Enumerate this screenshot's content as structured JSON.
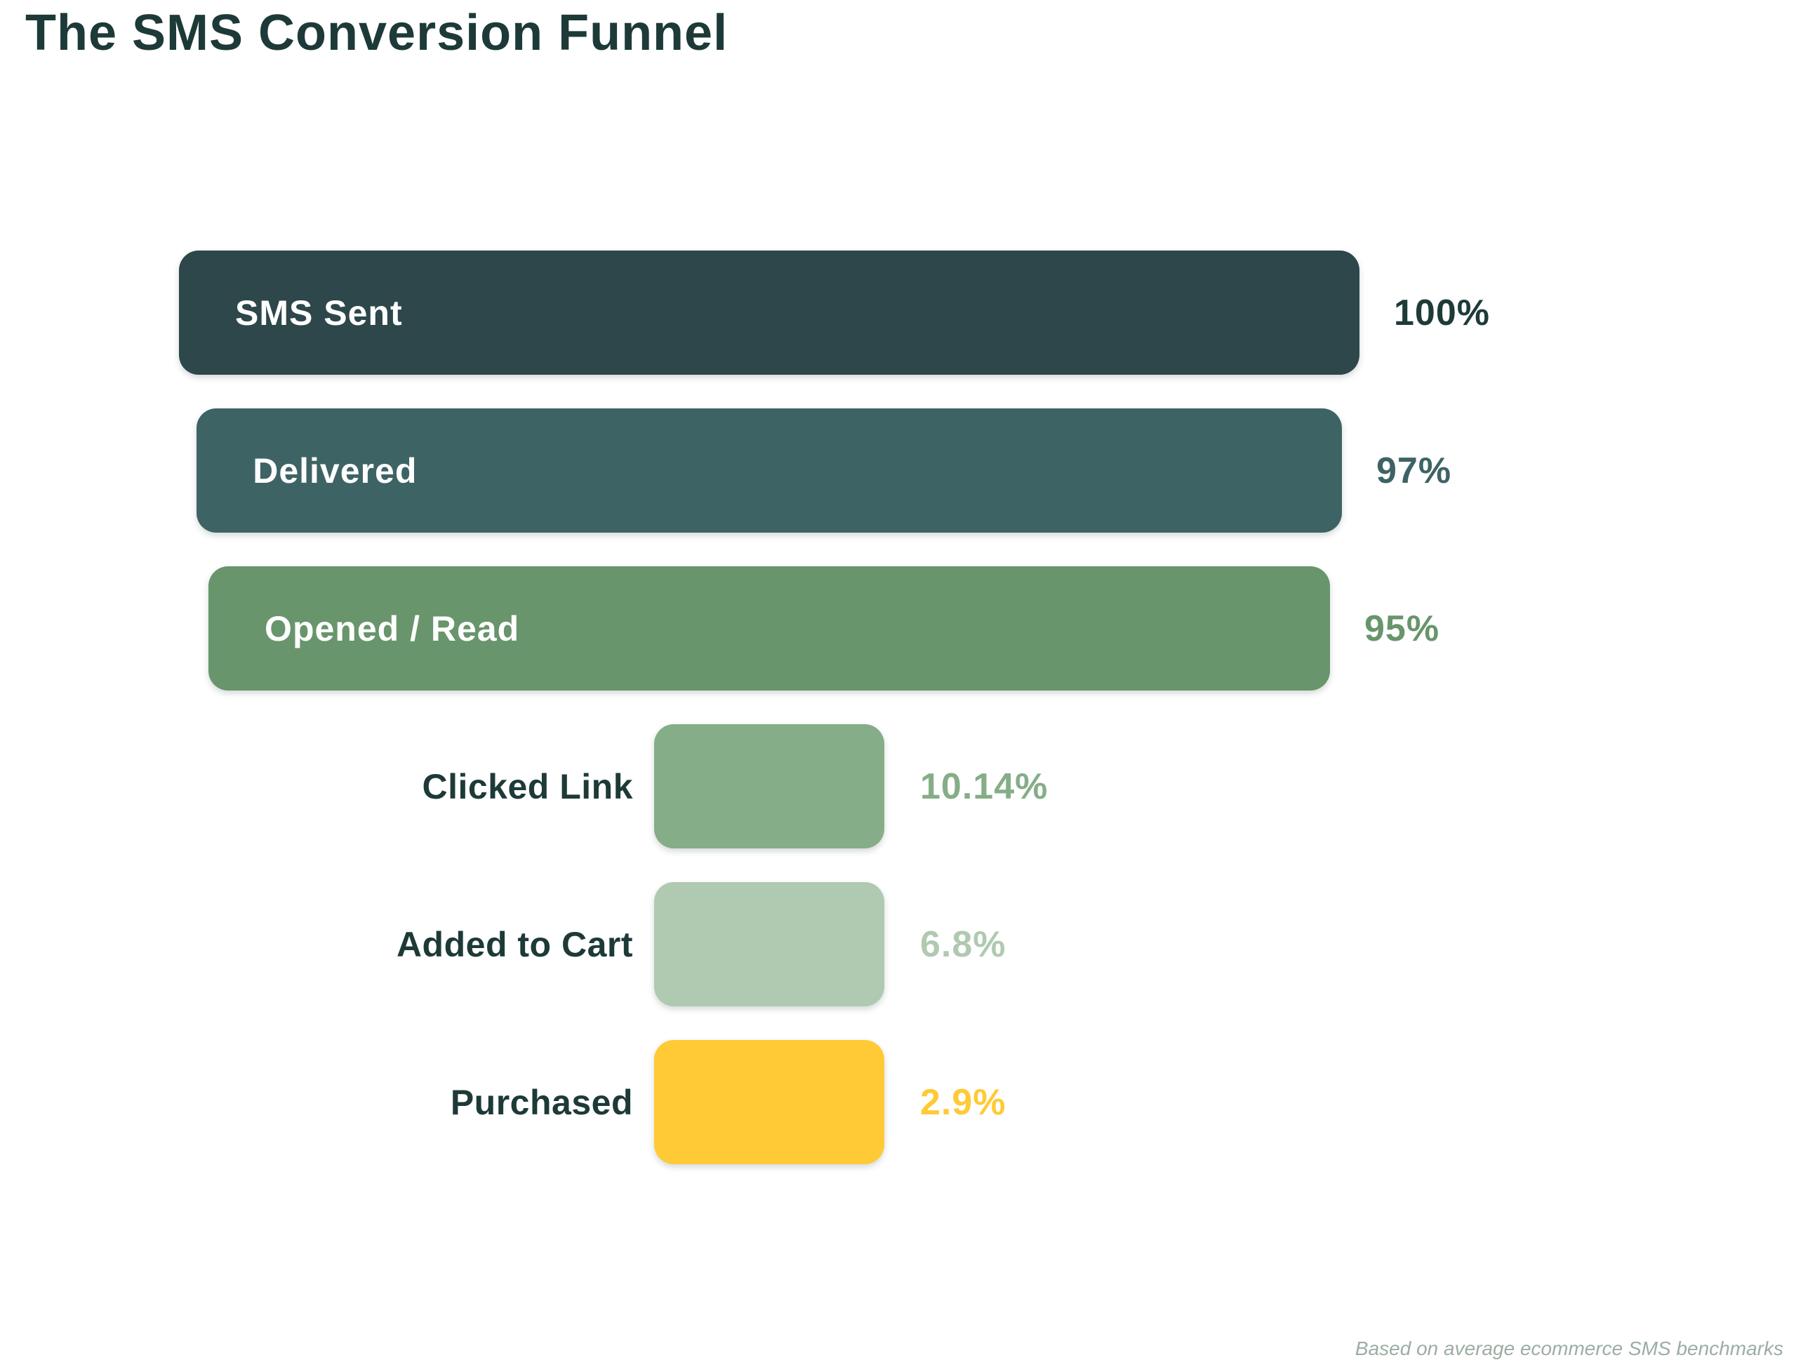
{
  "chart_data": {
    "type": "funnel",
    "title": "The SMS Conversion Funnel",
    "orientation": "horizontal-centered",
    "value_unit": "%",
    "stages": [
      {
        "label": "SMS Sent",
        "value": 100,
        "value_label": "100%",
        "color": "#2d474a",
        "value_color": "#1e3b39",
        "label_position": "inside"
      },
      {
        "label": "Delivered",
        "value": 97,
        "value_label": "97%",
        "color": "#3e6365",
        "value_color": "#3e6365",
        "label_position": "inside"
      },
      {
        "label": "Opened / Read",
        "value": 95,
        "value_label": "95%",
        "color": "#68956b",
        "value_color": "#68956b",
        "label_position": "inside"
      },
      {
        "label": "Clicked Link",
        "value": 10.14,
        "value_label": "10.14%",
        "color": "#85ad87",
        "value_color": "#85ad87",
        "label_position": "left"
      },
      {
        "label": "Added to Cart",
        "value": 6.8,
        "value_label": "6.8%",
        "color": "#b0c9b1",
        "value_color": "#b0c9b1",
        "label_position": "left"
      },
      {
        "label": "Purchased",
        "value": 2.9,
        "value_label": "2.9%",
        "color": "#ffca35",
        "value_color": "#ffca35",
        "label_position": "left"
      }
    ],
    "footnote": "Based on average ecommerce SMS benchmarks",
    "layout_hints": {
      "background": "#ffffff",
      "title_color": "#1d3a38",
      "stage_label_color_outside": "#1d3a38",
      "footnote_color": "#9dada3",
      "grid": false,
      "legend": false,
      "min_bar_width_applied_to_bottom_three": true
    }
  }
}
